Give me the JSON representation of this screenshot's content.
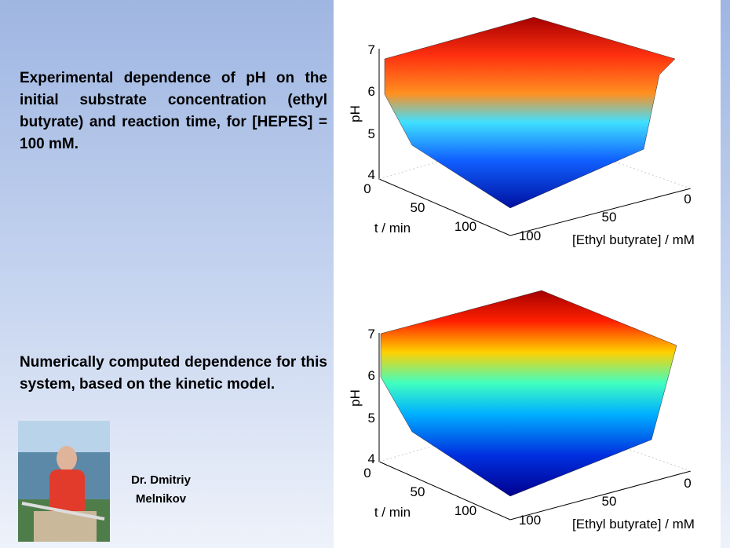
{
  "slide": {
    "text_blocks": [
      "Experimental dependence of pH on the initial substrate concentration (ethyl butyrate) and reaction time, for [HEPES] = 100 mM.",
      "Numerically computed dependence for this system, based on the kinetic model."
    ],
    "plots": [
      {
        "z_label": "pH",
        "z_ticks": [
          "7",
          "6",
          "5",
          "4"
        ],
        "t_ticks": [
          "0",
          "50",
          "100"
        ],
        "t_label": "t / min",
        "e_ticks": [
          "0",
          "50",
          "100"
        ],
        "e_label": "[Ethyl butyrate] / mM"
      },
      {
        "z_label": "pH",
        "z_ticks": [
          "7",
          "6",
          "5",
          "4"
        ],
        "t_ticks": [
          "0",
          "50",
          "100"
        ],
        "t_label": "t / min",
        "e_ticks": [
          "0",
          "50",
          "100"
        ],
        "e_label": "[Ethyl butyrate] / mM"
      }
    ],
    "author": [
      "Dr. Dmitriy",
      "Melnikov"
    ]
  }
}
